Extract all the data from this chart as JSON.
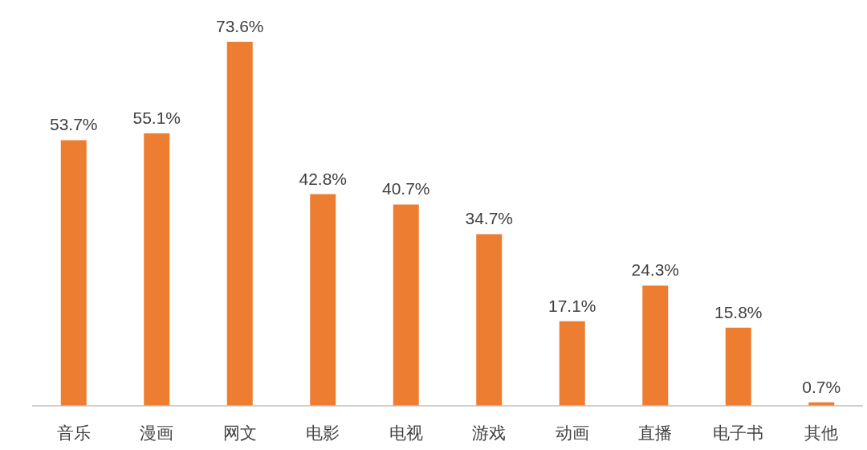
{
  "chart_data": {
    "type": "bar",
    "categories": [
      "音乐",
      "漫画",
      "网文",
      "电影",
      "电视",
      "游戏",
      "动画",
      "直播",
      "电子书",
      "其他"
    ],
    "values": [
      53.7,
      55.1,
      73.6,
      42.8,
      40.7,
      34.7,
      17.1,
      24.3,
      15.8,
      0.7
    ],
    "value_labels": [
      "53.7%",
      "55.1%",
      "73.6%",
      "42.8%",
      "40.7%",
      "34.7%",
      "17.1%",
      "24.3%",
      "15.8%",
      "0.7%"
    ],
    "color": "#ed7d31"
  }
}
